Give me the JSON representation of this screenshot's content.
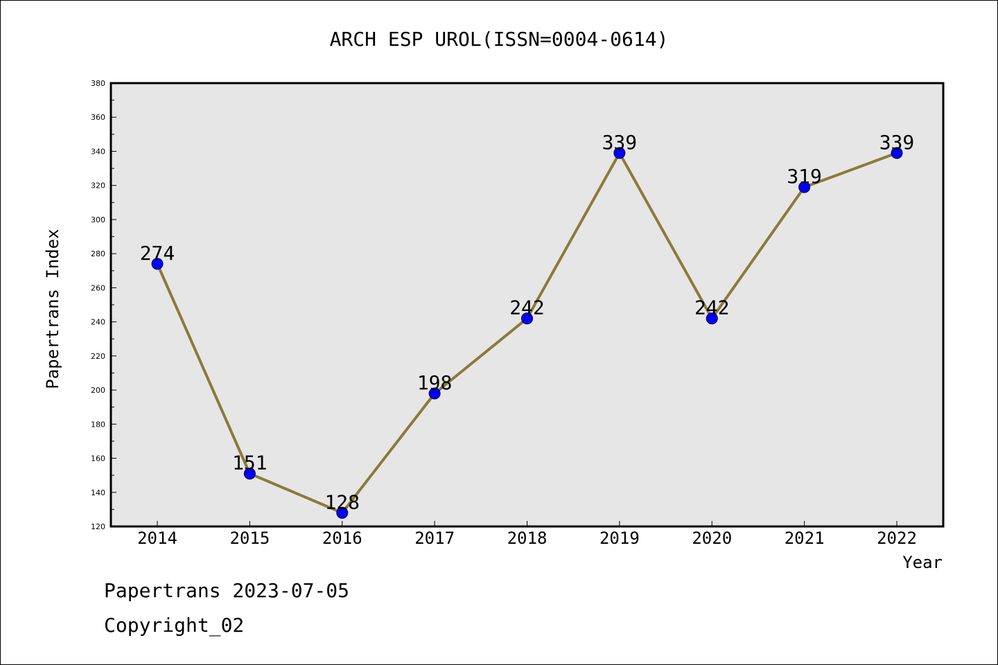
{
  "chart_data": {
    "type": "line",
    "title": "ARCH ESP UROL(ISSN=0004-0614)",
    "xlabel": "Year",
    "ylabel": "Papertrans Index",
    "categories": [
      "2014",
      "2015",
      "2016",
      "2017",
      "2018",
      "2019",
      "2020",
      "2021",
      "2022"
    ],
    "series": [
      {
        "values": [
          274,
          151,
          128,
          198,
          242,
          339,
          242,
          319,
          339
        ]
      }
    ],
    "data_labels": [
      "274",
      "151",
      "128",
      "198",
      "242",
      "339",
      "242",
      "319",
      "339"
    ],
    "ylim": [
      120,
      380
    ],
    "y_ticks": [
      "120",
      "140",
      "160",
      "180",
      "200",
      "220",
      "240",
      "260",
      "280",
      "300",
      "320",
      "340",
      "360",
      "380"
    ],
    "grid": false,
    "legend": "none",
    "colors": {
      "line": "#8b7a3a",
      "marker": "#0000ff",
      "plot_background": "#e6e6e6"
    }
  },
  "footer": {
    "line1": "Papertrans 2023-07-05",
    "line2": "Copyright_02"
  }
}
